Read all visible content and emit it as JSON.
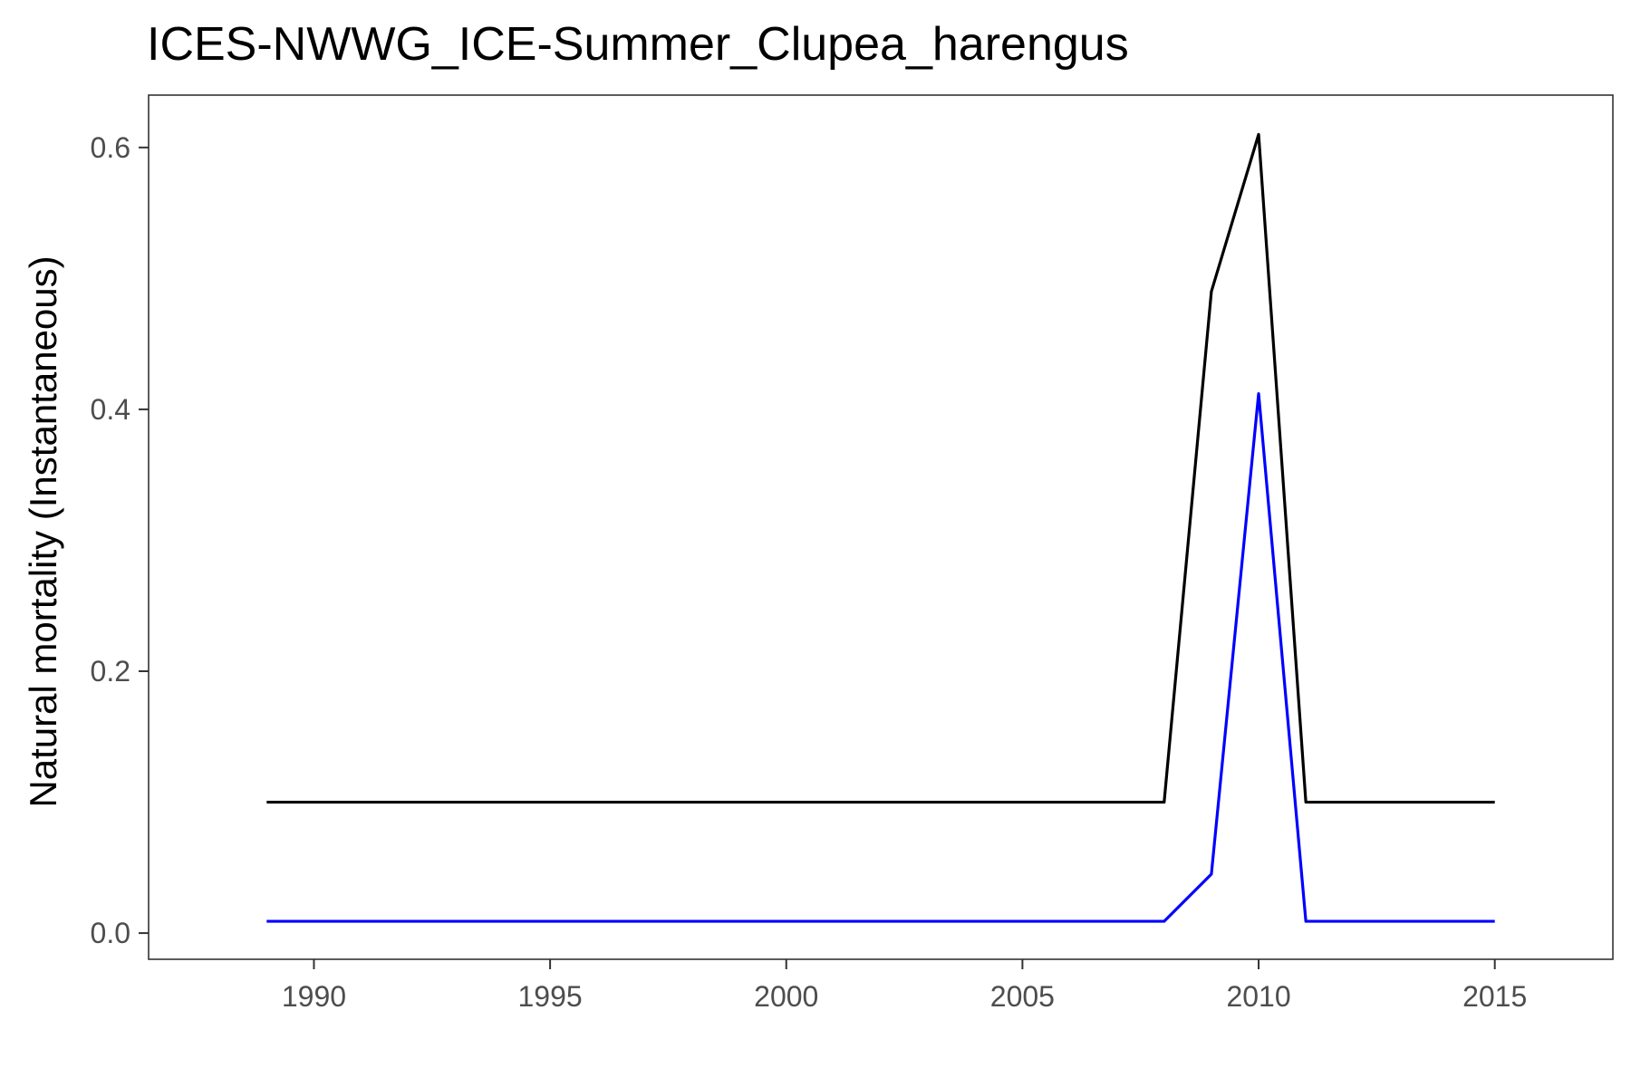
{
  "chart_data": {
    "type": "line",
    "title": "ICES-NWWG_ICE-Summer_Clupea_harengus",
    "xlabel": "",
    "ylabel": "Natural mortality (Instantaneous)",
    "xlim": [
      1986.5,
      2017.5
    ],
    "ylim": [
      -0.02,
      0.64
    ],
    "x_ticks": [
      1990,
      1995,
      2000,
      2005,
      2010,
      2015
    ],
    "x_tick_labels": [
      "1990",
      "1995",
      "2000",
      "2005",
      "2010",
      "2015"
    ],
    "y_ticks": [
      0.0,
      0.2,
      0.4,
      0.6
    ],
    "y_tick_labels": [
      "0.0",
      "0.2",
      "0.4",
      "0.6"
    ],
    "grid": false,
    "legend": "none",
    "series": [
      {
        "color": "#000000",
        "points": [
          {
            "x": 1989,
            "y": 0.1
          },
          {
            "x": 2008,
            "y": 0.1
          },
          {
            "x": 2009,
            "y": 0.49
          },
          {
            "x": 2010,
            "y": 0.61
          },
          {
            "x": 2011,
            "y": 0.1
          },
          {
            "x": 2015,
            "y": 0.1
          }
        ]
      },
      {
        "color": "#0000ff",
        "points": [
          {
            "x": 1989,
            "y": 0.009
          },
          {
            "x": 2008,
            "y": 0.009
          },
          {
            "x": 2009,
            "y": 0.045
          },
          {
            "x": 2010,
            "y": 0.412
          },
          {
            "x": 2011,
            "y": 0.009
          },
          {
            "x": 2015,
            "y": 0.009
          }
        ]
      }
    ]
  }
}
